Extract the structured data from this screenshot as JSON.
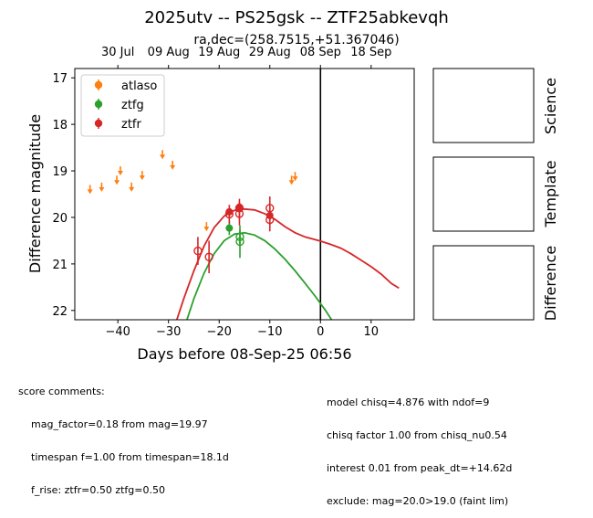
{
  "chart_data": {
    "type": "scatter",
    "title": "2025utv -- PS25gsk -- ZTF25abkevqh",
    "subtitle": "ra,dec=(258.7515,+51.367046)",
    "xlabel": "Days before 08-Sep-25 06:56",
    "ylabel": "Difference magnitude",
    "xlim": [
      -48.5,
      18.5
    ],
    "ylim": [
      22.2,
      16.8
    ],
    "y_inverted": true,
    "x_ticks": [
      -40,
      -30,
      -20,
      -10,
      0,
      10
    ],
    "y_ticks": [
      17,
      18,
      19,
      20,
      21,
      22
    ],
    "top_axis_ticks": [
      {
        "x": -40,
        "label": "30 Jul"
      },
      {
        "x": -30,
        "label": "09 Aug"
      },
      {
        "x": -20,
        "label": "19 Aug"
      },
      {
        "x": -10,
        "label": "29 Aug"
      },
      {
        "x": 0,
        "label": "08 Sep"
      },
      {
        "x": 10,
        "label": "18 Sep"
      }
    ],
    "reference_line_x": 0,
    "legend_position": "upper-left",
    "series": [
      {
        "name": "atlaso",
        "color": "#ff7f0e",
        "upper_limits": [
          {
            "x": -45.5,
            "y": 19.4
          },
          {
            "x": -43.2,
            "y": 19.35
          },
          {
            "x": -40.2,
            "y": 19.2
          },
          {
            "x": -39.5,
            "y": 19.0
          },
          {
            "x": -37.3,
            "y": 19.35
          },
          {
            "x": -35.2,
            "y": 19.1
          },
          {
            "x": -31.2,
            "y": 18.65
          },
          {
            "x": -29.2,
            "y": 18.88
          },
          {
            "x": -22.5,
            "y": 20.2
          },
          {
            "x": -5.7,
            "y": 19.2
          },
          {
            "x": -5.0,
            "y": 19.12
          }
        ]
      },
      {
        "name": "ztfg",
        "color": "#2ca02c",
        "detections": [
          {
            "x": -18.0,
            "y": 20.23,
            "err": 0.15,
            "filled": true
          },
          {
            "x": -15.9,
            "y": 20.42,
            "err": 0.15,
            "filled": false
          },
          {
            "x": -15.9,
            "y": 20.52,
            "err": 0.35,
            "filled": false
          }
        ],
        "model": [
          {
            "x": -26.5,
            "y": 22.25
          },
          {
            "x": -25,
            "y": 21.75
          },
          {
            "x": -23,
            "y": 21.2
          },
          {
            "x": -21,
            "y": 20.78
          },
          {
            "x": -19,
            "y": 20.5
          },
          {
            "x": -17,
            "y": 20.36
          },
          {
            "x": -15,
            "y": 20.33
          },
          {
            "x": -13,
            "y": 20.38
          },
          {
            "x": -11,
            "y": 20.5
          },
          {
            "x": -9,
            "y": 20.68
          },
          {
            "x": -7,
            "y": 20.9
          },
          {
            "x": -5,
            "y": 21.15
          },
          {
            "x": -3,
            "y": 21.42
          },
          {
            "x": -1,
            "y": 21.7
          },
          {
            "x": 1,
            "y": 22.0
          },
          {
            "x": 2.3,
            "y": 22.22
          }
        ]
      },
      {
        "name": "ztfr",
        "color": "#d62728",
        "detections": [
          {
            "x": -24.2,
            "y": 20.72,
            "err": 0.3,
            "filled": false
          },
          {
            "x": -22.0,
            "y": 20.85,
            "err": 0.35,
            "filled": false
          },
          {
            "x": -18.0,
            "y": 19.88,
            "err": 0.1,
            "filled": true
          },
          {
            "x": -18.0,
            "y": 19.93,
            "err": 0.2,
            "filled": false
          },
          {
            "x": -16.0,
            "y": 19.78,
            "err": 0.1,
            "filled": true
          },
          {
            "x": -16.0,
            "y": 19.92,
            "err": 0.25,
            "filled": false
          },
          {
            "x": -16.0,
            "y": 19.8,
            "err": 0.2,
            "filled": false
          },
          {
            "x": -10.0,
            "y": 19.96,
            "err": 0.2,
            "filled": true
          },
          {
            "x": -10.0,
            "y": 20.05,
            "err": 0.25,
            "filled": false
          },
          {
            "x": -10.0,
            "y": 19.8,
            "err": 0.25,
            "filled": false
          }
        ],
        "model": [
          {
            "x": -28.5,
            "y": 22.25
          },
          {
            "x": -27,
            "y": 21.75
          },
          {
            "x": -25,
            "y": 21.15
          },
          {
            "x": -23,
            "y": 20.62
          },
          {
            "x": -21,
            "y": 20.22
          },
          {
            "x": -19,
            "y": 19.97
          },
          {
            "x": -17,
            "y": 19.85
          },
          {
            "x": -15,
            "y": 19.82
          },
          {
            "x": -13,
            "y": 19.84
          },
          {
            "x": -11,
            "y": 19.92
          },
          {
            "x": -9,
            "y": 20.04
          },
          {
            "x": -7,
            "y": 20.2
          },
          {
            "x": -5,
            "y": 20.33
          },
          {
            "x": -3,
            "y": 20.42
          },
          {
            "x": 0,
            "y": 20.51
          },
          {
            "x": 2,
            "y": 20.58
          },
          {
            "x": 4,
            "y": 20.66
          },
          {
            "x": 6,
            "y": 20.78
          },
          {
            "x": 8,
            "y": 20.92
          },
          {
            "x": 10,
            "y": 21.06
          },
          {
            "x": 12,
            "y": 21.22
          },
          {
            "x": 14,
            "y": 21.42
          },
          {
            "x": 15.5,
            "y": 21.52
          }
        ]
      }
    ]
  },
  "side_panels": [
    {
      "label": "Science"
    },
    {
      "label": "Template"
    },
    {
      "label": "Difference"
    }
  ],
  "score_comments": {
    "heading": "score comments:",
    "left_lines": [
      "mag_factor=0.18 from mag=19.97",
      "timespan f=1.00 from timespan=18.1d",
      "f_rise: ztfr=0.50 ztfg=0.50"
    ],
    "right_lines": [
      "model chisq=4.876 with ndof=9",
      "chisq factor 1.00 from chisq_nu0.54",
      "interest 0.01 from peak_dt=+14.62d",
      "exclude: mag=20.0>19.0 (faint lim)"
    ]
  }
}
